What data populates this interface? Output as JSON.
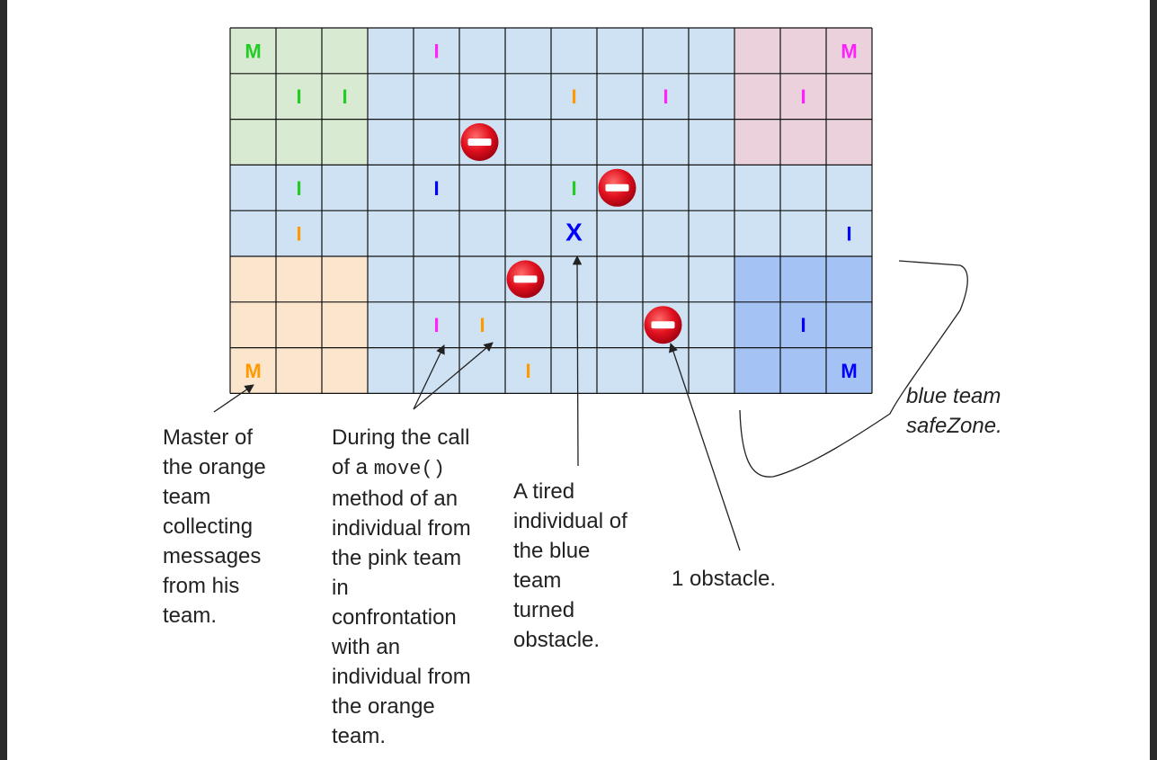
{
  "colors": {
    "green_zone": "#d9ead3",
    "pink_zone": "#ead1dc",
    "orange_zone": "#fce5cd",
    "blue_field": "#cfe2f3",
    "blue_zone": "#a4c2f4",
    "green_team": "#22cc22",
    "pink_team": "#ff22ff",
    "orange_team": "#ff9900",
    "blue_team": "#0000ff",
    "obstacle": "#d9001b"
  },
  "board": {
    "rows": 8,
    "cols": 14,
    "zones": [
      {
        "team": "green",
        "rows": [
          0,
          2
        ],
        "cols": [
          0,
          2
        ],
        "color": "#d9ead3"
      },
      {
        "team": "pink",
        "rows": [
          0,
          2
        ],
        "cols": [
          11,
          13
        ],
        "color": "#ead1dc"
      },
      {
        "team": "orange",
        "rows": [
          5,
          7
        ],
        "cols": [
          0,
          2
        ],
        "color": "#fce5cd"
      },
      {
        "team": "blue",
        "rows": [
          5,
          7
        ],
        "cols": [
          11,
          13
        ],
        "color": "#a4c2f4"
      }
    ],
    "pieces": [
      {
        "r": 0,
        "c": 0,
        "text": "M",
        "team": "green"
      },
      {
        "r": 0,
        "c": 4,
        "text": "I",
        "team": "pink"
      },
      {
        "r": 0,
        "c": 13,
        "text": "M",
        "team": "pink"
      },
      {
        "r": 1,
        "c": 1,
        "text": "I",
        "team": "green"
      },
      {
        "r": 1,
        "c": 2,
        "text": "I",
        "team": "green"
      },
      {
        "r": 1,
        "c": 7,
        "text": "I",
        "team": "orange"
      },
      {
        "r": 1,
        "c": 9,
        "text": "I",
        "team": "pink"
      },
      {
        "r": 1,
        "c": 12,
        "text": "I",
        "team": "pink"
      },
      {
        "r": 3,
        "c": 1,
        "text": "I",
        "team": "green"
      },
      {
        "r": 3,
        "c": 4,
        "text": "I",
        "team": "blue"
      },
      {
        "r": 3,
        "c": 7,
        "text": "I",
        "team": "green"
      },
      {
        "r": 4,
        "c": 1,
        "text": "I",
        "team": "orange"
      },
      {
        "r": 4,
        "c": 7,
        "text": "X",
        "team": "blue"
      },
      {
        "r": 4,
        "c": 13,
        "text": "I",
        "team": "blue"
      },
      {
        "r": 6,
        "c": 4,
        "text": "I",
        "team": "pink"
      },
      {
        "r": 6,
        "c": 5,
        "text": "I",
        "team": "orange"
      },
      {
        "r": 6,
        "c": 12,
        "text": "I",
        "team": "blue"
      },
      {
        "r": 7,
        "c": 0,
        "text": "M",
        "team": "orange"
      },
      {
        "r": 7,
        "c": 6,
        "text": "I",
        "team": "orange"
      },
      {
        "r": 7,
        "c": 13,
        "text": "M",
        "team": "blue"
      }
    ],
    "obstacles": [
      {
        "r": 2,
        "c": 5
      },
      {
        "r": 3,
        "c": 8
      },
      {
        "r": 5,
        "c": 6
      },
      {
        "r": 6,
        "c": 9
      }
    ]
  },
  "annotations": {
    "master": "Master of\nthe orange\nteam\ncollecting\nmessages\nfrom his\nteam.",
    "move_before": "During the call\nof a ",
    "move_code": "move()",
    "move_after": "\nmethod of an\nindividual from\nthe pink team\nin\nconfrontation\nwith an\nindividual from\nthe orange\nteam.",
    "tired": "A tired\nindividual of\nthe blue\nteam\nturned\nobstacle.",
    "obstacle": "1 obstacle.",
    "safezone": "blue team\nsafeZone."
  }
}
